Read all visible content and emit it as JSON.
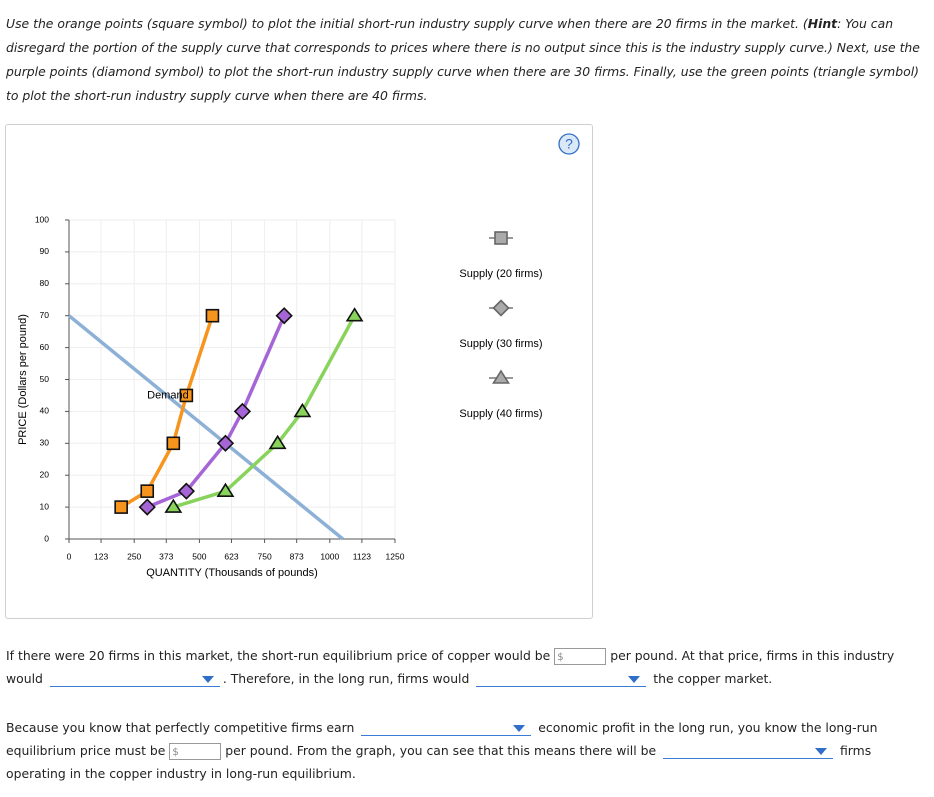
{
  "instructions": {
    "before": "Use the orange points (square symbol) to plot the initial short-run industry supply curve when there are 20 firms in the market. (",
    "hint": "Hint",
    "after": ": You can disregard the portion of the supply curve that corresponds to prices where there is no output since this is the industry supply curve.) Next, use the purple points (diamond symbol) to plot the short-run industry supply curve when there are 30 firms. Finally, use the green points (triangle symbol) to plot the short-run industry supply curve when there are 40 firms."
  },
  "help": "?",
  "chart_data": {
    "type": "line",
    "x_label": "QUANTITY (Thousands of pounds)",
    "y_label": "PRICE (Dollars per pound)",
    "xlim": [
      0,
      1250
    ],
    "xticks": [
      0,
      123,
      250,
      373,
      500,
      623,
      750,
      873,
      1000,
      1123,
      1250
    ],
    "ylim": [
      0,
      100
    ],
    "yticks": [
      0,
      10,
      20,
      30,
      40,
      50,
      60,
      70,
      80,
      90,
      100
    ],
    "grid": true,
    "demand": {
      "label": "Demand",
      "color": "#8db0d6",
      "x": [
        0,
        1050
      ],
      "values": [
        70,
        0
      ]
    },
    "series": [
      {
        "name": "Supply (20 firms)",
        "color": "#f7941d",
        "marker": "square",
        "x": [
          200,
          300,
          400,
          450,
          550
        ],
        "values": [
          10,
          15,
          30,
          45,
          70
        ]
      },
      {
        "name": "Supply (30 firms)",
        "color": "#a565d6",
        "marker": "diamond",
        "x": [
          300,
          450,
          600,
          665,
          825
        ],
        "values": [
          10,
          15,
          30,
          40,
          70
        ]
      },
      {
        "name": "Supply (40 firms)",
        "color": "#88d35c",
        "marker": "triangle",
        "x": [
          400,
          600,
          800,
          895,
          1095
        ],
        "values": [
          10,
          15,
          30,
          40,
          70
        ]
      }
    ]
  },
  "question": {
    "p1": [
      "If there were 20 firms in this market, the short-run equilibrium price of copper would be",
      "$",
      "per pound. At that price, firms in this industry would",
      ". Therefore, in the long run, firms would",
      "the copper market."
    ],
    "p2": [
      "Because you know that perfectly competitive firms earn",
      "economic profit in the long run, you know the long-run equilibrium price must be",
      "$",
      "per pound. From the graph, you can see that this means there will be",
      "firms operating in the copper industry in long-run equilibrium."
    ]
  }
}
